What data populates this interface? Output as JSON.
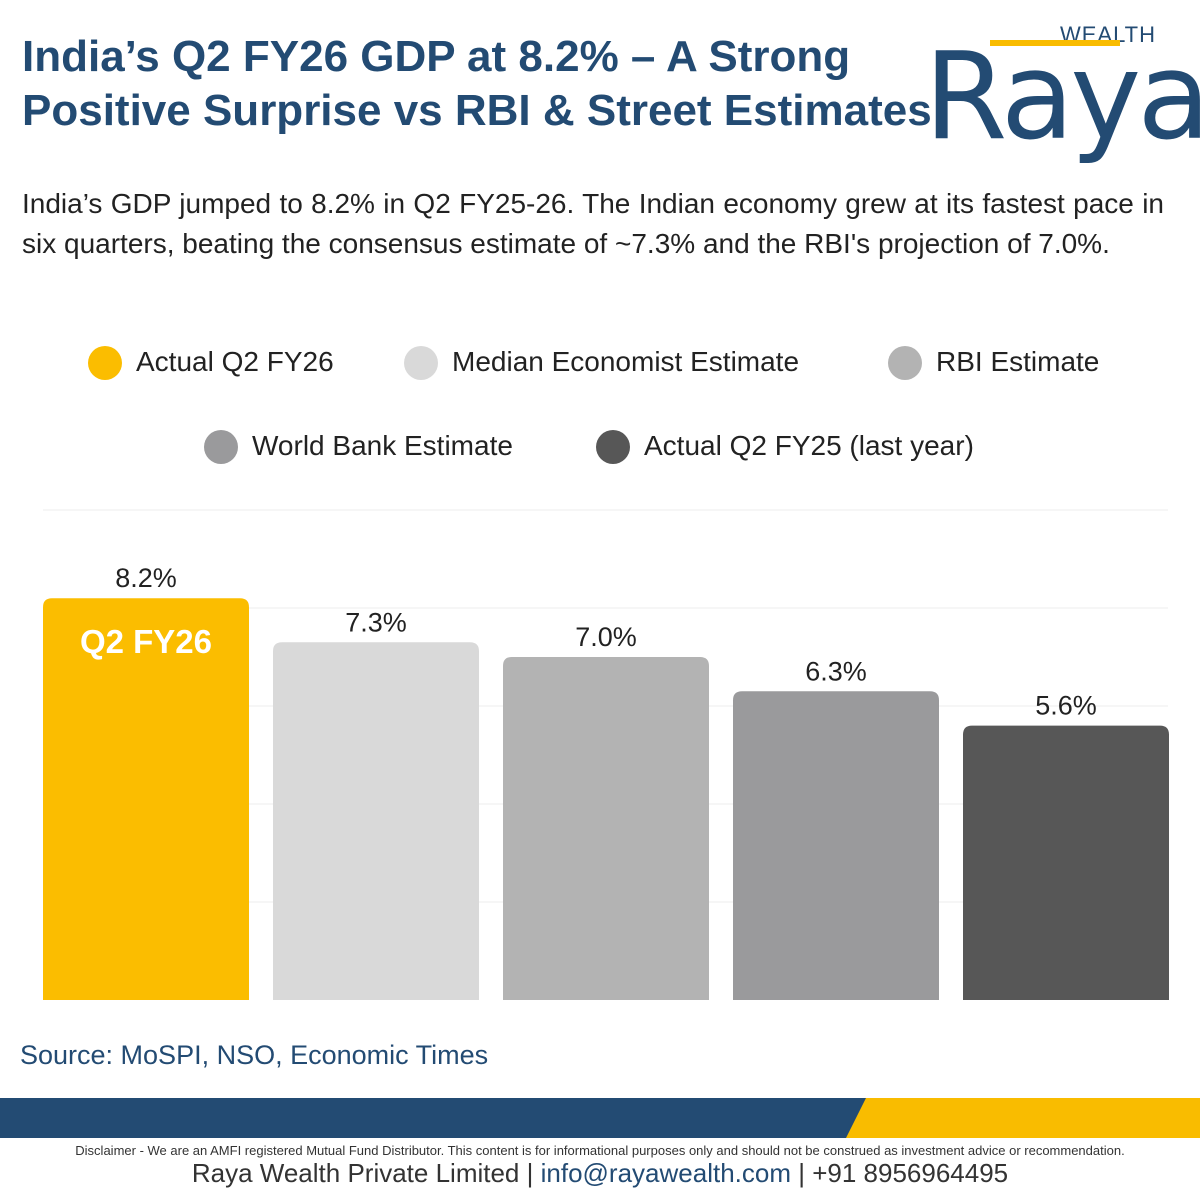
{
  "header": {
    "title_line1": "India’s Q2 FY26 GDP at 8.2% – A Strong",
    "title_line2": "Positive Surprise vs RBI & Street Estimates",
    "logo_top": "WEALTH",
    "logo_word": "Raya"
  },
  "intro": "India’s GDP jumped to 8.2% in Q2 FY25-26. The Indian economy grew at its fastest pace in six quarters, beating the consensus estimate of ~7.3% and the RBI's projection of 7.0%.",
  "colors": {
    "navy": "#234b73",
    "gold": "#f9bc00"
  },
  "chart_data": {
    "type": "bar",
    "categories": [
      "Actual Q2 FY26",
      "Median Economist Estimate",
      "RBI Estimate",
      "World Bank Estimate",
      "Actual Q2 FY25 (last year)"
    ],
    "values": [
      8.2,
      7.3,
      7.0,
      6.3,
      5.6
    ],
    "data_labels": [
      "8.2%",
      "7.3%",
      "7.0%",
      "6.3%",
      "5.6%"
    ],
    "colors": [
      "#fbbd00",
      "#d9d9d9",
      "#b3b3b3",
      "#9a9a9c",
      "#575757"
    ],
    "highlight_label": "Q2 FY26",
    "ylim": [
      0,
      10
    ],
    "grid": true,
    "legend_position": "top",
    "legend": [
      "Actual Q2 FY26",
      "Median Economist Estimate",
      "RBI Estimate",
      "World Bank Estimate",
      "Actual Q2 FY25 (last year)"
    ],
    "title": "",
    "xlabel": "",
    "ylabel": ""
  },
  "source": "Source: MoSPI, NSO, Economic Times",
  "disclaimer": "Disclaimer - We are an AMFI registered Mutual Fund Distributor. This content is for informational purposes only and should not be construed as investment advice or recommendation.",
  "footer": {
    "company": "Raya Wealth Private Limited",
    "separator": " | ",
    "email": "info@rayawealth.com",
    "phone": "+91 8956964495"
  }
}
